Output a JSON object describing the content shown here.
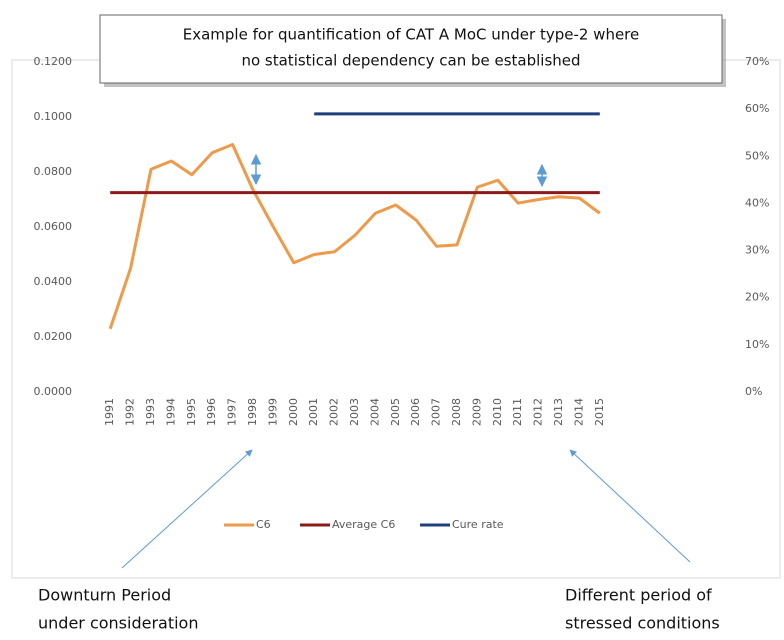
{
  "chart_data": {
    "type": "line",
    "title_lines": [
      "Example for quantification of CAT A MoC under type-2 where",
      "no statistical dependency can be established"
    ],
    "categories": [
      "1991",
      "1992",
      "1993",
      "1994",
      "1995",
      "1996",
      "1997",
      "1998",
      "1999",
      "2000",
      "2001",
      "2002",
      "2003",
      "2004",
      "2005",
      "2006",
      "2007",
      "2008",
      "2009",
      "2010",
      "2011",
      "2012",
      "2013",
      "2014",
      "2015"
    ],
    "series": [
      {
        "name": "C6",
        "color": "#ed9a4a",
        "values": [
          0.023,
          0.045,
          0.081,
          0.084,
          0.079,
          0.087,
          0.09,
          0.0735,
          0.06,
          0.047,
          0.05,
          0.051,
          0.057,
          0.065,
          0.068,
          0.0625,
          0.053,
          0.0535,
          0.0745,
          0.077,
          0.0687,
          0.07,
          0.071,
          0.0705,
          0.065
        ]
      },
      {
        "name": "Average C6",
        "color": "#8b1a1a",
        "values": [
          0.0725,
          0.0725,
          0.0725,
          0.0725,
          0.0725,
          0.0725,
          0.0725,
          0.0725,
          0.0725,
          0.0725,
          0.0725,
          0.0725,
          0.0725,
          0.0725,
          0.0725,
          0.0725,
          0.0725,
          0.0725,
          0.0725,
          0.0725,
          0.0725,
          0.0725,
          0.0725,
          0.0725,
          0.0725
        ]
      },
      {
        "name": "Cure rate",
        "color": "#1f3f7a",
        "axis": "y2",
        "values": [
          null,
          null,
          null,
          null,
          null,
          null,
          null,
          null,
          null,
          null,
          59,
          59,
          59,
          59,
          59,
          59,
          59,
          59,
          59,
          59,
          59,
          59,
          59,
          59,
          59
        ]
      }
    ],
    "ylim": [
      0,
      0.12
    ],
    "yticks": [
      {
        "value": 0,
        "label": "0.0000"
      },
      {
        "value": 0.02,
        "label": "0.0200"
      },
      {
        "value": 0.04,
        "label": "0.0400"
      },
      {
        "value": 0.06,
        "label": "0.0600"
      },
      {
        "value": 0.08,
        "label": "0.0800"
      },
      {
        "value": 0.1,
        "label": "0.1000"
      },
      {
        "value": 0.12,
        "label": "0.1200"
      }
    ],
    "y2lim": [
      0,
      70
    ],
    "y2ticks": [
      {
        "value": 0,
        "label": "0%"
      },
      {
        "value": 10,
        "label": "10%"
      },
      {
        "value": 20,
        "label": "20%"
      },
      {
        "value": 30,
        "label": "30%"
      },
      {
        "value": 40,
        "label": "40%"
      },
      {
        "value": 50,
        "label": "50%"
      },
      {
        "value": 60,
        "label": "60%"
      },
      {
        "value": 70,
        "label": "70%"
      }
    ],
    "grid": false,
    "legend": "bottom",
    "annotations": [
      {
        "lines": [
          "Downturn Period",
          "under consideration"
        ]
      },
      {
        "lines": [
          "Different period of",
          "stressed conditions"
        ]
      }
    ]
  }
}
